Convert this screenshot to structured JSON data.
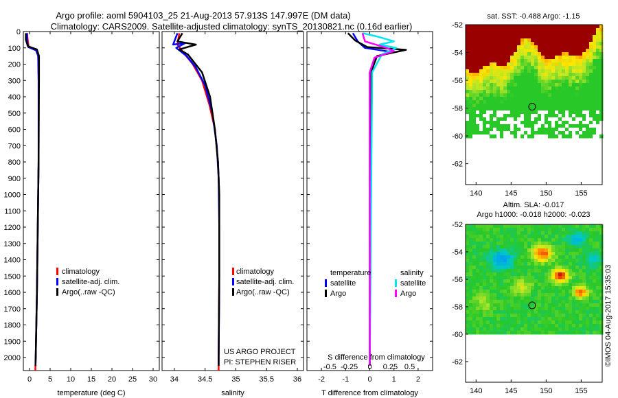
{
  "header": {
    "title_line1": "Argo profile: aoml 5904103_25 21-Aug-2013 57.913S 147.997E (DM data)",
    "title_line2": "Climatology: CARS2009. Satellite-adjusted climatology: synTS_20130821.nc (0.16d earlier)"
  },
  "colors": {
    "climatology": "#ff0000",
    "satellite_adj": "#0000ff",
    "argo": "#000000",
    "salinity_satellite": "#00e5ee",
    "salinity_argo": "#ff00ff",
    "sst_land": "#9b0000"
  },
  "chart_data": [
    {
      "id": "temperature",
      "type": "line",
      "xlabel": "temperature (deg C)",
      "xlim": [
        -1.5,
        31.5
      ],
      "xticks": [
        "0",
        "5",
        "10",
        "15",
        "20",
        "25",
        "30"
      ],
      "xtick_values": [
        0,
        5,
        10,
        15,
        20,
        25,
        30
      ],
      "ylim": [
        0,
        2080
      ],
      "yticks": [
        "0",
        "100",
        "200",
        "300",
        "400",
        "500",
        "600",
        "700",
        "800",
        "900",
        "1000",
        "1100",
        "1200",
        "1300",
        "1400",
        "1500",
        "1600",
        "1700",
        "1800",
        "1900",
        "2000"
      ],
      "ytick_values": [
        0,
        100,
        200,
        300,
        400,
        500,
        600,
        700,
        800,
        900,
        1000,
        1100,
        1200,
        1300,
        1400,
        1500,
        1600,
        1700,
        1800,
        1900,
        2000
      ],
      "legend": [
        "climatology",
        "satellite-adj. clim.",
        "Argo(..raw -QC)"
      ],
      "series": [
        {
          "name": "climatology",
          "color_key": "climatology",
          "points": [
            [
              -0.6,
              10
            ],
            [
              -0.4,
              60
            ],
            [
              -0.2,
              95
            ],
            [
              1.6,
              115
            ],
            [
              2.1,
              150
            ],
            [
              2.2,
              300
            ],
            [
              2.2,
              800
            ],
            [
              2.0,
              1200
            ],
            [
              1.8,
              1600
            ],
            [
              1.5,
              2000
            ],
            [
              1.4,
              2080
            ]
          ]
        },
        {
          "name": "satellite-adj. clim.",
          "color_key": "satellite_adj",
          "points": [
            [
              -0.6,
              10
            ],
            [
              -0.6,
              60
            ],
            [
              -0.3,
              95
            ],
            [
              1.6,
              115
            ],
            [
              2.1,
              150
            ],
            [
              2.2,
              300
            ],
            [
              2.2,
              800
            ],
            [
              2.0,
              1200
            ],
            [
              1.8,
              1600
            ],
            [
              1.5,
              2000
            ],
            [
              1.45,
              2050
            ]
          ]
        },
        {
          "name": "Argo(..raw -QC)",
          "color_key": "argo",
          "points": [
            [
              -0.9,
              10
            ],
            [
              -0.9,
              50
            ],
            [
              -0.4,
              90
            ],
            [
              1.8,
              110
            ],
            [
              2.3,
              150
            ],
            [
              2.3,
              300
            ],
            [
              2.2,
              800
            ],
            [
              2.0,
              1200
            ],
            [
              1.8,
              1600
            ],
            [
              1.5,
              2000
            ],
            [
              1.45,
              2050
            ]
          ]
        }
      ]
    },
    {
      "id": "salinity",
      "type": "line",
      "xlabel": "salinity",
      "xlim": [
        33.8,
        36.1
      ],
      "xticks": [
        "34",
        "34.5",
        "35",
        "35.5",
        "36"
      ],
      "xtick_values": [
        34,
        34.5,
        35,
        35.5,
        36
      ],
      "ylim": [
        0,
        2080
      ],
      "legend": [
        "climatology",
        "satellite-adj. clim.",
        "Argo(..raw -QC)"
      ],
      "annotations": [
        "US ARGO PROJECT",
        "PI: STEPHEN RISER"
      ],
      "series": [
        {
          "name": "climatology",
          "color_key": "climatology",
          "points": [
            [
              34.08,
              10
            ],
            [
              34.05,
              80
            ],
            [
              34.15,
              130
            ],
            [
              34.3,
              200
            ],
            [
              34.45,
              300
            ],
            [
              34.57,
              450
            ],
            [
              34.66,
              600
            ],
            [
              34.71,
              800
            ],
            [
              34.73,
              1000
            ],
            [
              34.73,
              1500
            ],
            [
              34.72,
              2000
            ],
            [
              34.72,
              2080
            ]
          ]
        },
        {
          "name": "satellite-adj. clim.",
          "color_key": "satellite_adj",
          "points": [
            [
              34.05,
              10
            ],
            [
              33.98,
              80
            ],
            [
              34.18,
              70
            ],
            [
              34.03,
              100
            ],
            [
              34.2,
              150
            ],
            [
              34.35,
              220
            ],
            [
              34.5,
              330
            ],
            [
              34.62,
              500
            ],
            [
              34.69,
              700
            ],
            [
              34.72,
              900
            ],
            [
              34.73,
              1200
            ],
            [
              34.73,
              1600
            ],
            [
              34.72,
              2000
            ],
            [
              34.72,
              2050
            ]
          ]
        },
        {
          "name": "Argo(..raw -QC)",
          "color_key": "argo",
          "points": [
            [
              34.13,
              10
            ],
            [
              34.05,
              60
            ],
            [
              34.35,
              80
            ],
            [
              34.08,
              110
            ],
            [
              34.22,
              140
            ],
            [
              34.45,
              250
            ],
            [
              34.58,
              400
            ],
            [
              34.66,
              600
            ],
            [
              34.71,
              800
            ],
            [
              34.73,
              1000
            ],
            [
              34.73,
              1500
            ],
            [
              34.72,
              2000
            ],
            [
              34.72,
              2050
            ]
          ]
        }
      ]
    },
    {
      "id": "differences",
      "type": "line",
      "xlabel": "T difference from climatology",
      "xlabel2": "S difference from climatology",
      "xlim": [
        -2.6,
        2.6
      ],
      "xticks_T": [
        "-2",
        "-1",
        "0",
        "1",
        "2"
      ],
      "xtick_values_T": [
        -2,
        -1,
        0,
        1,
        2
      ],
      "xticks_S": [
        "-0.5",
        "-0.25",
        "0",
        "0.25",
        "0.5"
      ],
      "ylim": [
        0,
        2080
      ],
      "legend_temperature_title": "temperature",
      "legend_salinity_title": "salinity",
      "legend_temperature": [
        "satellite",
        "Argo"
      ],
      "legend_salinity": [
        "satellite",
        "Argo"
      ],
      "series": [
        {
          "name": "satellite",
          "group": "temperature",
          "color_key": "satellite_adj",
          "points": [
            [
              -0.7,
              10
            ],
            [
              -0.5,
              60
            ],
            [
              -0.2,
              100
            ],
            [
              0.9,
              125
            ],
            [
              0.2,
              160
            ],
            [
              0.0,
              250
            ],
            [
              0.0,
              2050
            ]
          ]
        },
        {
          "name": "Argo",
          "group": "temperature",
          "color_key": "argo",
          "points": [
            [
              -0.9,
              10
            ],
            [
              -0.6,
              55
            ],
            [
              -0.1,
              95
            ],
            [
              1.5,
              112
            ],
            [
              0.3,
              150
            ],
            [
              0.05,
              250
            ],
            [
              0.0,
              2050
            ]
          ]
        },
        {
          "name": "satellite",
          "group": "salinity",
          "color_key": "salinity_satellite",
          "points": [
            [
              -0.3,
              10
            ],
            [
              0.3,
              30
            ],
            [
              1.0,
              60
            ],
            [
              0.4,
              80
            ],
            [
              1.1,
              100
            ],
            [
              0.5,
              140
            ],
            [
              0.1,
              250
            ],
            [
              0.0,
              2050
            ]
          ]
        },
        {
          "name": "Argo",
          "group": "salinity",
          "color_key": "salinity_argo",
          "points": [
            [
              -0.3,
              10
            ],
            [
              -0.2,
              60
            ],
            [
              0.7,
              100
            ],
            [
              1.0,
              120
            ],
            [
              0.2,
              160
            ],
            [
              0.0,
              250
            ],
            [
              0.0,
              2050
            ]
          ]
        }
      ]
    },
    {
      "id": "sst_map",
      "type": "heatmap",
      "title": "sat. SST: -0.488 Argo: -1.15",
      "xlim": [
        138.5,
        158
      ],
      "ylim": [
        -63.5,
        -52
      ],
      "xticks": [
        "140",
        "145",
        "150",
        "155"
      ],
      "xtick_values": [
        140,
        145,
        150,
        155
      ],
      "yticks": [
        "-52",
        "-54",
        "-56",
        "-58",
        "-60",
        "-62"
      ],
      "ytick_values": [
        -52,
        -54,
        -56,
        -58,
        -60,
        -62
      ],
      "marker": {
        "lon": 148.0,
        "lat": -57.9
      },
      "data_coverage_lat": [
        -60,
        -52
      ]
    },
    {
      "id": "sla_map",
      "type": "heatmap",
      "title": "Altim. SLA: -0.017",
      "subtitle": "Argo h1000: -0.018 h2000: -0.023",
      "xlim": [
        138.5,
        158
      ],
      "ylim": [
        -63.5,
        -52
      ],
      "xticks": [
        "140",
        "145",
        "150",
        "155"
      ],
      "xtick_values": [
        140,
        145,
        150,
        155
      ],
      "yticks": [
        "-52",
        "-54",
        "-56",
        "-58",
        "-60",
        "-62"
      ],
      "ytick_values": [
        -52,
        -54,
        -56,
        -58,
        -60,
        -62
      ],
      "marker": {
        "lon": 148.0,
        "lat": -57.9
      },
      "data_coverage_lat": [
        -60,
        -52
      ]
    }
  ],
  "footer": {
    "credit": "©IMOS 04-Aug-2017 15:35:03"
  }
}
